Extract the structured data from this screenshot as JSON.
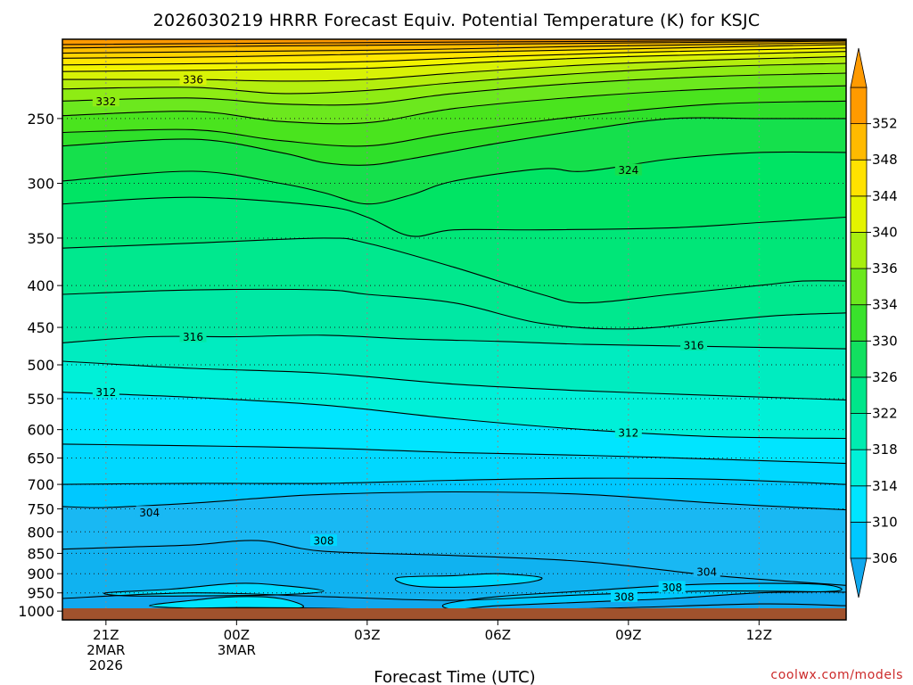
{
  "chart_data": {
    "type": "heatmap",
    "title": "2026030219 HRRR Forecast Equiv. Potential Temperature (K) for KSJC",
    "xlabel": "Forecast Time (UTC)",
    "ylabel": "",
    "credit": "coolwx.com/models",
    "x_time_labels": [
      {
        "hour": 1,
        "lines": [
          "21Z",
          "2MAR",
          "2026"
        ]
      },
      {
        "hour": 4,
        "lines": [
          "00Z",
          "3MAR"
        ]
      },
      {
        "hour": 7,
        "lines": [
          "03Z"
        ]
      },
      {
        "hour": 10,
        "lines": [
          "06Z"
        ]
      },
      {
        "hour": 13,
        "lines": [
          "09Z"
        ]
      },
      {
        "hour": 16,
        "lines": [
          "12Z"
        ]
      }
    ],
    "x_range_hours": [
      0,
      18
    ],
    "y_axis": {
      "scale": "pressure-log-inverted",
      "unit": "hPa",
      "range": [
        1025,
        200
      ],
      "ticks": [
        250,
        300,
        350,
        400,
        450,
        500,
        550,
        600,
        650,
        700,
        750,
        800,
        850,
        900,
        950,
        1000
      ]
    },
    "colorbar": {
      "ticks": [
        306,
        310,
        314,
        318,
        322,
        326,
        330,
        334,
        336,
        340,
        344,
        348,
        352
      ],
      "colors": [
        "#00c8ff",
        "#00e5ff",
        "#00f0d8",
        "#00ecb0",
        "#00e68a",
        "#12e060",
        "#39e22c",
        "#6ce81e",
        "#a8ee10",
        "#e4f400",
        "#ffe200",
        "#ffba00",
        "#ff9a00"
      ],
      "low_color": "#10a8ee",
      "high_color": "#ff9a00"
    },
    "band_colors": {
      "v300": "#10a8ee",
      "v302": "#10b2f0",
      "v304": "#19b8f3",
      "v306": "#00c8ff",
      "v308": "#00d8ff",
      "v310": "#00e5ff",
      "v312": "#00f0d8",
      "v314": "#00ecc0",
      "v316": "#00e8a4",
      "v318": "#00e88e",
      "v320": "#00e678",
      "v322": "#00e464",
      "v324": "#15e04c",
      "v326": "#2fe02a",
      "v328": "#4ae41e",
      "v330": "#6ce81e",
      "v332": "#8eec14",
      "v334": "#b4ee0e",
      "v336": "#d8f206",
      "v338": "#f2f400",
      "v340": "#ffe600",
      "v342": "#ffd400",
      "v344": "#ffc000",
      "v346": "#ffa800",
      "v348": "#ff9a00"
    },
    "ground_color": "#a0522d",
    "isentropes_K": [
      {
        "value": 300,
        "points": [
          [
            0,
            1000
          ],
          [
            4,
            990
          ],
          [
            8,
            995
          ],
          [
            12,
            993
          ],
          [
            16,
            980
          ],
          [
            18,
            985
          ]
        ]
      },
      {
        "value": 302,
        "points": [
          [
            0,
            965
          ],
          [
            3,
            950
          ],
          [
            6,
            960
          ],
          [
            9,
            970
          ],
          [
            12,
            955
          ],
          [
            15,
            945
          ],
          [
            18,
            948
          ]
        ]
      },
      {
        "value": 304,
        "points": [
          [
            0,
            840
          ],
          [
            1.5,
            835
          ],
          [
            3,
            830
          ],
          [
            4.5,
            820
          ],
          [
            6,
            845
          ],
          [
            9,
            855
          ],
          [
            12,
            870
          ],
          [
            15,
            905
          ],
          [
            18,
            930
          ]
        ]
      },
      {
        "value": 306,
        "points": [
          [
            0,
            745
          ],
          [
            1,
            747
          ],
          [
            3,
            738
          ],
          [
            4.5,
            728
          ],
          [
            6,
            720
          ],
          [
            9,
            715
          ],
          [
            12,
            720
          ],
          [
            15,
            738
          ],
          [
            18,
            752
          ]
        ]
      },
      {
        "value": 308,
        "points": [
          [
            0,
            700
          ],
          [
            3,
            698
          ],
          [
            6,
            698
          ],
          [
            9,
            692
          ],
          [
            12,
            688
          ],
          [
            15,
            690
          ],
          [
            18,
            700
          ]
        ]
      },
      {
        "value": 310,
        "points": [
          [
            0,
            625
          ],
          [
            3,
            628
          ],
          [
            6,
            632
          ],
          [
            9,
            640
          ],
          [
            12,
            645
          ],
          [
            15,
            652
          ],
          [
            18,
            660
          ]
        ]
      },
      {
        "value": 312,
        "points": [
          [
            0,
            540
          ],
          [
            3,
            548
          ],
          [
            6,
            560
          ],
          [
            9,
            582
          ],
          [
            12,
            600
          ],
          [
            15,
            612
          ],
          [
            18,
            615
          ]
        ]
      },
      {
        "value": 314,
        "points": [
          [
            0,
            495
          ],
          [
            3,
            505
          ],
          [
            6,
            512
          ],
          [
            9,
            528
          ],
          [
            12,
            538
          ],
          [
            15,
            545
          ],
          [
            18,
            552
          ]
        ]
      },
      {
        "value": 316,
        "points": [
          [
            0,
            470
          ],
          [
            2,
            462
          ],
          [
            4,
            462
          ],
          [
            6,
            460
          ],
          [
            8,
            465
          ],
          [
            10,
            468
          ],
          [
            12,
            472
          ],
          [
            15,
            475
          ],
          [
            18,
            478
          ]
        ]
      },
      {
        "value": 318,
        "points": [
          [
            0,
            410
          ],
          [
            3,
            405
          ],
          [
            6,
            405
          ],
          [
            7,
            410
          ],
          [
            9,
            420
          ],
          [
            11,
            445
          ],
          [
            13,
            452
          ],
          [
            15,
            442
          ],
          [
            16.5,
            435
          ],
          [
            18,
            432
          ]
        ]
      },
      {
        "value": 320,
        "points": [
          [
            0,
            360
          ],
          [
            3,
            355
          ],
          [
            6,
            350
          ],
          [
            7,
            355
          ],
          [
            9,
            380
          ],
          [
            11,
            410
          ],
          [
            12,
            420
          ],
          [
            14,
            410
          ],
          [
            16,
            400
          ],
          [
            17,
            395
          ],
          [
            18,
            395
          ]
        ]
      },
      {
        "value": 322,
        "points": [
          [
            0,
            318
          ],
          [
            3,
            312
          ],
          [
            6,
            320
          ],
          [
            7,
            330
          ],
          [
            8,
            348
          ],
          [
            9,
            342
          ],
          [
            11,
            342
          ],
          [
            14,
            340
          ],
          [
            16,
            335
          ],
          [
            18,
            330
          ]
        ]
      },
      {
        "value": 324,
        "points": [
          [
            0,
            298
          ],
          [
            3,
            290
          ],
          [
            5,
            300
          ],
          [
            6,
            308
          ],
          [
            7,
            318
          ],
          [
            8,
            310
          ],
          [
            9,
            298
          ],
          [
            11,
            288
          ],
          [
            12,
            290
          ],
          [
            14,
            280
          ],
          [
            16,
            275
          ],
          [
            18,
            275
          ]
        ]
      },
      {
        "value": 326,
        "points": [
          [
            0,
            270
          ],
          [
            3,
            265
          ],
          [
            5,
            275
          ],
          [
            6,
            283
          ],
          [
            7,
            285
          ],
          [
            8,
            280
          ],
          [
            10,
            268
          ],
          [
            12,
            258
          ],
          [
            14,
            250
          ],
          [
            16,
            250
          ],
          [
            18,
            250
          ]
        ]
      },
      {
        "value": 328,
        "points": [
          [
            0,
            260
          ],
          [
            3,
            258
          ],
          [
            5,
            266
          ],
          [
            7,
            270
          ],
          [
            9,
            260
          ],
          [
            12,
            248
          ],
          [
            15,
            240
          ],
          [
            18,
            238
          ]
        ]
      },
      {
        "value": 330,
        "points": [
          [
            0,
            248
          ],
          [
            3,
            245
          ],
          [
            5,
            252
          ],
          [
            7,
            253
          ],
          [
            9,
            243
          ],
          [
            12,
            235
          ],
          [
            15,
            230
          ],
          [
            18,
            228
          ]
        ]
      },
      {
        "value": 332,
        "points": [
          [
            0,
            238
          ],
          [
            3,
            236
          ],
          [
            5,
            240
          ],
          [
            7,
            240
          ],
          [
            9,
            233
          ],
          [
            12,
            226
          ],
          [
            15,
            222
          ],
          [
            18,
            220
          ]
        ]
      },
      {
        "value": 334,
        "points": [
          [
            0,
            230
          ],
          [
            3,
            229
          ],
          [
            5,
            233
          ],
          [
            7,
            231
          ],
          [
            9,
            226
          ],
          [
            12,
            220
          ],
          [
            15,
            216
          ],
          [
            18,
            214
          ]
        ]
      },
      {
        "value": 336,
        "points": [
          [
            0,
            224
          ],
          [
            3,
            224
          ],
          [
            5,
            225
          ],
          [
            7,
            224
          ],
          [
            9,
            220
          ],
          [
            12,
            215
          ],
          [
            15,
            212
          ],
          [
            18,
            210
          ]
        ]
      },
      {
        "value": 338,
        "points": [
          [
            0,
            219
          ],
          [
            4,
            218
          ],
          [
            7,
            217
          ],
          [
            10,
            213
          ],
          [
            13,
            210
          ],
          [
            18,
            207
          ]
        ]
      },
      {
        "value": 340,
        "points": [
          [
            0,
            215
          ],
          [
            4,
            214
          ],
          [
            7,
            213
          ],
          [
            10,
            210
          ],
          [
            14,
            207
          ],
          [
            18,
            205
          ]
        ]
      },
      {
        "value": 342,
        "points": [
          [
            0,
            211
          ],
          [
            4,
            210
          ],
          [
            8,
            208
          ],
          [
            12,
            206
          ],
          [
            18,
            203
          ]
        ]
      },
      {
        "value": 344,
        "points": [
          [
            0,
            208
          ],
          [
            4,
            207
          ],
          [
            8,
            206
          ],
          [
            12,
            204
          ],
          [
            18,
            202
          ]
        ]
      },
      {
        "value": 346,
        "points": [
          [
            0,
            205
          ],
          [
            4,
            204
          ],
          [
            9,
            203
          ],
          [
            18,
            201
          ]
        ]
      },
      {
        "value": 348,
        "points": [
          [
            0,
            203
          ],
          [
            6,
            202
          ],
          [
            18,
            200.5
          ]
        ]
      }
    ],
    "warm_pockets": [
      {
        "value": 308,
        "points": [
          [
            1,
            950
          ],
          [
            2.5,
            940
          ],
          [
            4,
            925
          ],
          [
            5,
            930
          ],
          [
            6,
            945
          ],
          [
            5,
            955
          ],
          [
            3,
            958
          ],
          [
            1.5,
            958
          ]
        ]
      },
      {
        "value": 310,
        "points": [
          [
            2,
            985
          ],
          [
            3,
            970
          ],
          [
            4,
            960
          ],
          [
            5,
            965
          ],
          [
            5.5,
            990
          ],
          [
            4,
            992
          ],
          [
            3,
            992
          ]
        ]
      },
      {
        "value": 308,
        "points": [
          [
            7.7,
            910
          ],
          [
            9,
            905
          ],
          [
            10,
            900
          ],
          [
            11,
            910
          ],
          [
            10.5,
            925
          ],
          [
            9,
            935
          ],
          [
            8,
            930
          ]
        ]
      },
      {
        "value": 306,
        "points": [
          [
            8.8,
            980
          ],
          [
            10,
            960
          ],
          [
            12,
            945
          ],
          [
            14,
            930
          ],
          [
            16,
            925
          ],
          [
            17.5,
            928
          ],
          [
            17.8,
            945
          ],
          [
            16,
            950
          ],
          [
            14,
            965
          ],
          [
            12,
            975
          ],
          [
            10,
            985
          ],
          [
            9,
            995
          ]
        ]
      }
    ],
    "contour_labels": [
      {
        "value": "336",
        "hour": 3,
        "p": 224
      },
      {
        "value": "332",
        "hour": 1,
        "p": 238
      },
      {
        "value": "324",
        "hour": 13,
        "p": 289
      },
      {
        "value": "316",
        "hour": 3,
        "p": 462
      },
      {
        "value": "316",
        "hour": 14.5,
        "p": 473
      },
      {
        "value": "312",
        "hour": 1,
        "p": 540
      },
      {
        "value": "312",
        "hour": 13,
        "p": 605
      },
      {
        "value": "304",
        "hour": 2,
        "p": 757
      },
      {
        "value": "308",
        "hour": 6,
        "p": 820
      },
      {
        "value": "304",
        "hour": 14.8,
        "p": 895
      },
      {
        "value": "308",
        "hour": 14.0,
        "p": 935
      },
      {
        "value": "308",
        "hour": 12.9,
        "p": 960
      }
    ]
  }
}
